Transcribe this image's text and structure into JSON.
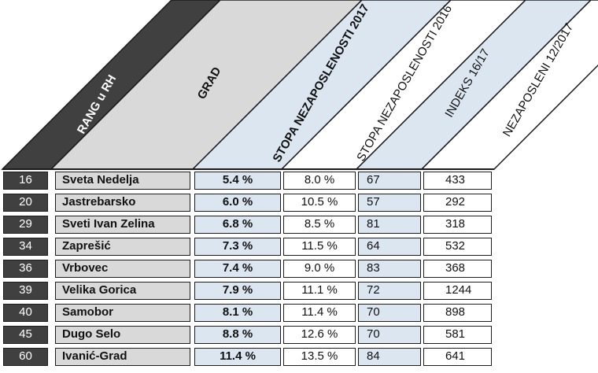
{
  "header": {
    "rank": "RANG u RH",
    "city": "GRAD",
    "rate2017": "STOPA NEZAPOSLENOSTI 2017",
    "rate2016": "STOPA NEZAPOSLENOSTI 2016",
    "index": "INDEKS 16/17",
    "unemployed": "NEZAPOSLENI 12/2017"
  },
  "rows": [
    {
      "rank": "16",
      "city": "Sveta Nedelja",
      "rate2017": "5.4 %",
      "rate2016": "8.0 %",
      "index": "67",
      "unemployed": "433"
    },
    {
      "rank": "20",
      "city": "Jastrebarsko",
      "rate2017": "6.0 %",
      "rate2016": "10.5 %",
      "index": "57",
      "unemployed": "292"
    },
    {
      "rank": "29",
      "city": "Sveti Ivan Zelina",
      "rate2017": "6.8 %",
      "rate2016": "8.5 %",
      "index": "81",
      "unemployed": "318"
    },
    {
      "rank": "34",
      "city": "Zaprešić",
      "rate2017": "7.3 %",
      "rate2016": "11.5 %",
      "index": "64",
      "unemployed": "532"
    },
    {
      "rank": "36",
      "city": "Vrbovec",
      "rate2017": "7.4 %",
      "rate2016": "9.0 %",
      "index": "83",
      "unemployed": "368"
    },
    {
      "rank": "39",
      "city": "Velika Gorica",
      "rate2017": "7.9 %",
      "rate2016": "11.1 %",
      "index": "72",
      "unemployed": "1244"
    },
    {
      "rank": "40",
      "city": "Samobor",
      "rate2017": "8.1 %",
      "rate2016": "11.4 %",
      "index": "70",
      "unemployed": "898"
    },
    {
      "rank": "45",
      "city": "Dugo Selo",
      "rate2017": "8.8 %",
      "rate2016": "12.6 %",
      "index": "70",
      "unemployed": "581"
    },
    {
      "rank": "60",
      "city": "Ivanić-Grad",
      "rate2017": "11.4 %",
      "rate2016": "13.5 %",
      "index": "84",
      "unemployed": "641"
    }
  ]
}
